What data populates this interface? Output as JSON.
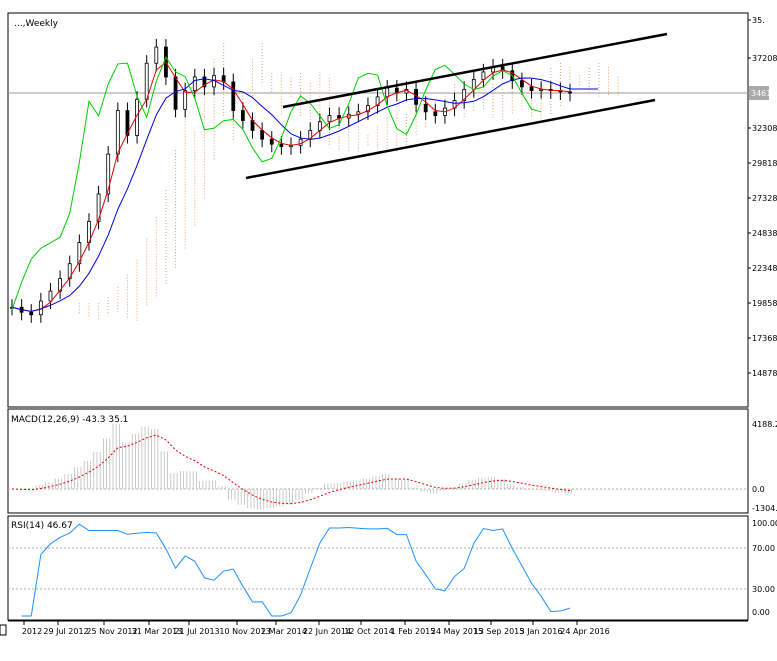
{
  "chart_data": [
    {
      "type": "candlestick",
      "title": "...,Weekly",
      "y_ticks": [
        35,
        37208,
        34610,
        32308,
        29818,
        27328,
        24838,
        22348,
        19858,
        17368,
        14878
      ],
      "y_tick_labels": [
        "35.",
        "37208",
        "34610",
        "32308",
        "29818",
        "27328",
        "24838",
        "22348",
        "19858",
        "17368",
        "14878"
      ],
      "current_price_label": "34610",
      "x_tick_labels": [
        "2012",
        "29 Jul 2012",
        "25 Nov 2012",
        "31 Mar 2013",
        "21 Jul 2013",
        "10 Nov 2013",
        "2 Mar 2014",
        "22 Jun 2014",
        "12 Oct 2014",
        "1 Feb 2015",
        "24 May 2015",
        "13 Sep 2015",
        "3 Jan 2016",
        "24 Apr 2016"
      ],
      "colors": {
        "tenkan": "#e00000",
        "kijun": "#0000e0",
        "chikou": "#00cc00",
        "cloud": "#f3a060",
        "candles": "#000000",
        "channel": "#000000"
      },
      "close_series": [
        17400,
        17000,
        16800,
        17900,
        18700,
        19700,
        20900,
        22600,
        24300,
        26500,
        29700,
        33200,
        31200,
        34100,
        37000,
        38300,
        35900,
        33300,
        34800,
        35900,
        35100,
        36000,
        35500,
        33200,
        32400,
        31600,
        30900,
        30500,
        30300,
        30400,
        30900,
        31600,
        32300,
        32800,
        32600,
        32900,
        33100,
        33600,
        34300,
        35000,
        34600,
        34900,
        33700,
        33100,
        32800,
        33400,
        34000,
        34900,
        35700,
        36300,
        36700,
        36400,
        35600,
        35100,
        34800,
        34900,
        34800,
        34700,
        34600
      ]
    },
    {
      "type": "macd",
      "label": "MACD(12,26,9) -43.3 35.1",
      "y_tick_labels": [
        "4188.2",
        "0.0",
        "-1304.2"
      ],
      "colors": {
        "histogram": "#bdbdbd",
        "signal": "#e00000"
      }
    },
    {
      "type": "line",
      "label": "RSI(14) 46.67",
      "y_tick_labels": [
        "100.00",
        "70.00",
        "30.00",
        "0.00"
      ],
      "colors": {
        "line": "#1e90ff"
      }
    }
  ]
}
